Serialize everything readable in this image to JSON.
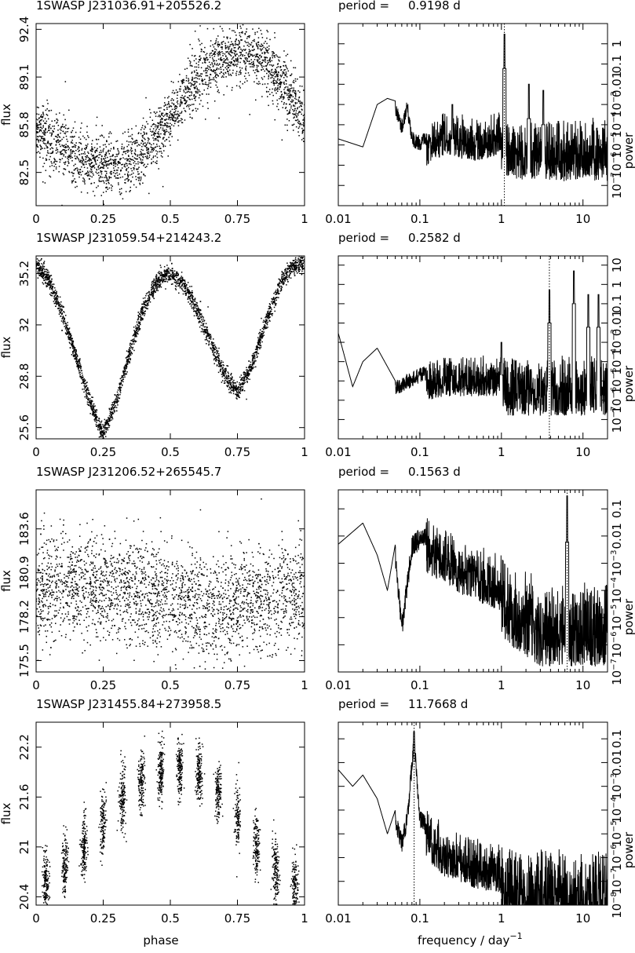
{
  "figure": {
    "phase_xlabel": "phase",
    "freq_xlabel_main": "frequency / day",
    "freq_xlabel_exp": "−1",
    "flux_ylabel": "flux",
    "power_ylabel": "power",
    "period_label": "period ="
  },
  "chart_data": [
    {
      "type": "scatter",
      "title": "1SWASP J231036.91+205526.2",
      "xlabel": "phase",
      "ylabel": "flux",
      "xlim": [
        0,
        1
      ],
      "ylim": [
        80.2,
        92.8
      ],
      "xticks": [
        "0",
        "0.25",
        "0.5",
        "0.75",
        "1"
      ],
      "yticks": [
        {
          "v": 82.5,
          "t": "82.5"
        },
        {
          "v": 85.8,
          "t": "85.8"
        },
        {
          "v": 89.1,
          "t": "89.1"
        },
        {
          "v": 92.4,
          "t": "92.4"
        }
      ],
      "curve": [
        [
          0.0,
          85.6
        ],
        [
          0.1,
          84.1
        ],
        [
          0.2,
          83.2
        ],
        [
          0.28,
          82.9
        ],
        [
          0.35,
          83.2
        ],
        [
          0.4,
          83.8
        ],
        [
          0.45,
          85.0
        ],
        [
          0.5,
          86.4
        ],
        [
          0.55,
          87.6
        ],
        [
          0.6,
          88.9
        ],
        [
          0.65,
          89.9
        ],
        [
          0.7,
          90.5
        ],
        [
          0.75,
          90.9
        ],
        [
          0.8,
          90.8
        ],
        [
          0.85,
          90.1
        ],
        [
          0.9,
          89.0
        ],
        [
          0.95,
          87.7
        ],
        [
          1.0,
          85.9
        ]
      ],
      "scatter_sd": 1.0,
      "n_points": 2600
    },
    {
      "type": "line",
      "title": "period = 0.9198 d",
      "period_value": "0.9198 d",
      "xlabel": "frequency / day^-1",
      "ylabel": "power",
      "xscale": "log",
      "yscale": "log",
      "xlim": [
        0.01,
        20
      ],
      "ylim": [
        1e-08,
        10
      ],
      "xticks": [
        "0.01",
        "0.1",
        "1",
        "10"
      ],
      "ytick_labels": [
        "10^-7",
        "10^-6",
        "10^-5",
        "10^-4",
        "10^-3",
        "0.01",
        "0.1",
        "1"
      ],
      "ytick_values": [
        1e-07,
        1e-06,
        1e-05,
        0.0001,
        0.001,
        0.01,
        0.1,
        1
      ],
      "peak_frequency": 1.087,
      "envelope": [
        [
          0.01,
          2e-05
        ],
        [
          0.02,
          8e-06
        ],
        [
          0.03,
          0.001
        ],
        [
          0.04,
          0.002
        ],
        [
          0.05,
          0.0015
        ],
        [
          0.06,
          0.0002
        ],
        [
          0.07,
          0.002
        ],
        [
          0.08,
          5e-05
        ],
        [
          0.1,
          3e-05
        ],
        [
          0.2,
          0.0002
        ],
        [
          0.5,
          0.0001
        ],
        [
          1,
          0.0002
        ],
        [
          2,
          0.0001
        ],
        [
          5,
          0.0001
        ],
        [
          10,
          0.0001
        ],
        [
          20,
          0.0001
        ]
      ],
      "lines": [
        {
          "f": 1.087,
          "p": 3
        },
        {
          "f": 2.17,
          "p": 0.01
        },
        {
          "f": 3.26,
          "p": 0.005
        },
        {
          "f": 0.25,
          "p": 0.001
        }
      ]
    },
    {
      "type": "scatter",
      "title": "1SWASP J231059.54+214243.2",
      "xlabel": "phase",
      "ylabel": "flux",
      "xlim": [
        0,
        1
      ],
      "ylim": [
        24.9,
        36.3
      ],
      "xticks": [
        "0",
        "0.25",
        "0.5",
        "0.75",
        "1"
      ],
      "yticks": [
        {
          "v": 25.6,
          "t": "25.6"
        },
        {
          "v": 28.8,
          "t": "28.8"
        },
        {
          "v": 32,
          "t": "32"
        },
        {
          "v": 35.2,
          "t": "35.2"
        }
      ],
      "curve": [
        [
          0.0,
          35.8
        ],
        [
          0.05,
          34.7
        ],
        [
          0.1,
          32.6
        ],
        [
          0.15,
          30.0
        ],
        [
          0.2,
          27.2
        ],
        [
          0.25,
          25.2
        ],
        [
          0.3,
          27.3
        ],
        [
          0.35,
          30.3
        ],
        [
          0.4,
          33.0
        ],
        [
          0.45,
          34.7
        ],
        [
          0.5,
          35.2
        ],
        [
          0.55,
          34.5
        ],
        [
          0.6,
          32.9
        ],
        [
          0.65,
          31.0
        ],
        [
          0.7,
          29.0
        ],
        [
          0.75,
          27.8
        ],
        [
          0.8,
          29.3
        ],
        [
          0.85,
          31.9
        ],
        [
          0.9,
          34.2
        ],
        [
          0.95,
          35.6
        ],
        [
          1.0,
          35.9
        ]
      ],
      "scatter_sd": 0.28,
      "n_points": 3000
    },
    {
      "type": "line",
      "title": "period = 0.2582 d",
      "period_value": "0.2582 d",
      "xlabel": "frequency / day^-1",
      "ylabel": "power",
      "xscale": "log",
      "yscale": "log",
      "xlim": [
        0.01,
        20
      ],
      "ylim": [
        1e-08,
        30
      ],
      "xticks": [
        "0.01",
        "0.1",
        "1",
        "10"
      ],
      "ytick_labels": [
        "10^-7",
        "10^-6",
        "10^-5",
        "10^-4",
        "10^-3",
        "0.01",
        "0.1",
        "1",
        "10"
      ],
      "ytick_values": [
        1e-07,
        1e-06,
        1e-05,
        0.0001,
        0.001,
        0.01,
        0.1,
        1,
        10
      ],
      "peak_frequency": 3.873,
      "envelope": [
        [
          0.01,
          0.003
        ],
        [
          0.015,
          5e-06
        ],
        [
          0.02,
          0.0001
        ],
        [
          0.03,
          0.0005
        ],
        [
          0.05,
          1e-05
        ],
        [
          0.1,
          5e-05
        ],
        [
          0.2,
          0.0001
        ],
        [
          0.5,
          0.0001
        ],
        [
          1,
          0.0001
        ],
        [
          2,
          0.0001
        ],
        [
          5,
          0.0001
        ],
        [
          10,
          0.0001
        ],
        [
          20,
          0.0001
        ]
      ],
      "lines": [
        {
          "f": 3.873,
          "p": 0.5
        },
        {
          "f": 7.746,
          "p": 5
        },
        {
          "f": 11.62,
          "p": 0.3
        },
        {
          "f": 15.49,
          "p": 0.3
        },
        {
          "f": 1.0,
          "p": 0.001
        }
      ]
    },
    {
      "type": "scatter",
      "title": "1SWASP J231206.52+265545.7",
      "xlabel": "phase",
      "ylabel": "flux",
      "xlim": [
        0,
        1
      ],
      "ylim": [
        174.8,
        186.0
      ],
      "xticks": [
        "0",
        "0.25",
        "0.5",
        "0.75",
        "1"
      ],
      "yticks": [
        {
          "v": 175.5,
          "t": "175.5"
        },
        {
          "v": 178.2,
          "t": "178.2"
        },
        {
          "v": 180.9,
          "t": "180.9"
        },
        {
          "v": 183.6,
          "t": "183.6"
        }
      ],
      "curve": [
        [
          0.0,
          179.6
        ],
        [
          0.1,
          180.3
        ],
        [
          0.2,
          180.1
        ],
        [
          0.3,
          179.8
        ],
        [
          0.4,
          179.5
        ],
        [
          0.5,
          179.1
        ],
        [
          0.6,
          178.9
        ],
        [
          0.7,
          178.9
        ],
        [
          0.8,
          179.2
        ],
        [
          0.9,
          179.5
        ],
        [
          1.0,
          179.8
        ]
      ],
      "scatter_sd": 1.6,
      "n_points": 2800
    },
    {
      "type": "line",
      "title": "period = 0.1563 d",
      "period_value": "0.1563 d",
      "xlabel": "frequency / day^-1",
      "ylabel": "power",
      "xscale": "log",
      "yscale": "log",
      "xlim": [
        0.01,
        20
      ],
      "ylim": [
        1e-07,
        0.5
      ],
      "xticks": [
        "0.01",
        "0.1",
        "1",
        "10"
      ],
      "ytick_labels": [
        "10^-7",
        "10^-6",
        "10^-5",
        "10^-4",
        "10^-3",
        "0.01",
        "0.1"
      ],
      "ytick_values": [
        1e-07,
        1e-06,
        1e-05,
        0.0001,
        0.001,
        0.01,
        0.1
      ],
      "peak_frequency": 6.398,
      "envelope": [
        [
          0.01,
          0.005
        ],
        [
          0.02,
          0.03
        ],
        [
          0.03,
          0.002
        ],
        [
          0.04,
          0.0001
        ],
        [
          0.05,
          0.005
        ],
        [
          0.06,
          1e-05
        ],
        [
          0.08,
          0.01
        ],
        [
          0.1,
          0.02
        ],
        [
          0.15,
          0.02
        ],
        [
          0.3,
          0.005
        ],
        [
          1,
          0.001
        ],
        [
          3,
          0.0001
        ],
        [
          10,
          0.0001
        ],
        [
          20,
          0.0001
        ]
      ],
      "lines": [
        {
          "f": 6.398,
          "p": 0.3
        }
      ]
    },
    {
      "type": "scatter",
      "title": "1SWASP J231455.84+273958.5",
      "xlabel": "phase",
      "ylabel": "flux",
      "xlim": [
        0,
        1
      ],
      "ylim": [
        20.3,
        22.5
      ],
      "xticks": [
        "0",
        "0.25",
        "0.5",
        "0.75",
        "1"
      ],
      "yticks": [
        {
          "v": 20.4,
          "t": "20.4"
        },
        {
          "v": 21,
          "t": "21"
        },
        {
          "v": 21.6,
          "t": "21.6"
        },
        {
          "v": 22.2,
          "t": "22.2"
        }
      ],
      "curve": [
        [
          0.0,
          20.5
        ],
        [
          0.1,
          20.7
        ],
        [
          0.2,
          21.1
        ],
        [
          0.3,
          21.5
        ],
        [
          0.4,
          21.8
        ],
        [
          0.5,
          22.0
        ],
        [
          0.6,
          21.9
        ],
        [
          0.7,
          21.6
        ],
        [
          0.8,
          21.1
        ],
        [
          0.9,
          20.7
        ],
        [
          1.0,
          20.4
        ]
      ],
      "scatter_sd": 0.18,
      "stripes": 14,
      "n_points": 2200
    },
    {
      "type": "line",
      "title": "period = 11.7668 d",
      "period_value": "11.7668 d",
      "xlabel": "frequency / day^-1",
      "ylabel": "power",
      "xscale": "log",
      "yscale": "log",
      "xlim": [
        0.01,
        20
      ],
      "ylim": [
        1e-08,
        0.5
      ],
      "xticks": [
        "0.01",
        "0.1",
        "1",
        "10"
      ],
      "ytick_labels": [
        "10^-8",
        "10^-7",
        "10^-6",
        "10^-5",
        "10^-4",
        "10^-3",
        "0.01",
        "0.1"
      ],
      "ytick_values": [
        1e-08,
        1e-07,
        1e-06,
        1e-05,
        0.0001,
        0.001,
        0.01,
        0.1
      ],
      "peak_frequency": 0.085,
      "envelope": [
        [
          0.01,
          0.005
        ],
        [
          0.015,
          0.001
        ],
        [
          0.02,
          0.003
        ],
        [
          0.03,
          0.0003
        ],
        [
          0.04,
          1e-05
        ],
        [
          0.05,
          0.0001
        ],
        [
          0.06,
          1e-05
        ],
        [
          0.07,
          0.0001
        ],
        [
          0.085,
          0.2
        ],
        [
          0.1,
          0.0001
        ],
        [
          0.2,
          1e-05
        ],
        [
          0.5,
          3e-06
        ],
        [
          1,
          2e-06
        ],
        [
          2,
          1e-06
        ],
        [
          5,
          1e-06
        ],
        [
          10,
          1e-06
        ],
        [
          20,
          1e-06
        ]
      ],
      "lines": [
        {
          "f": 0.085,
          "p": 0.2
        }
      ]
    }
  ]
}
